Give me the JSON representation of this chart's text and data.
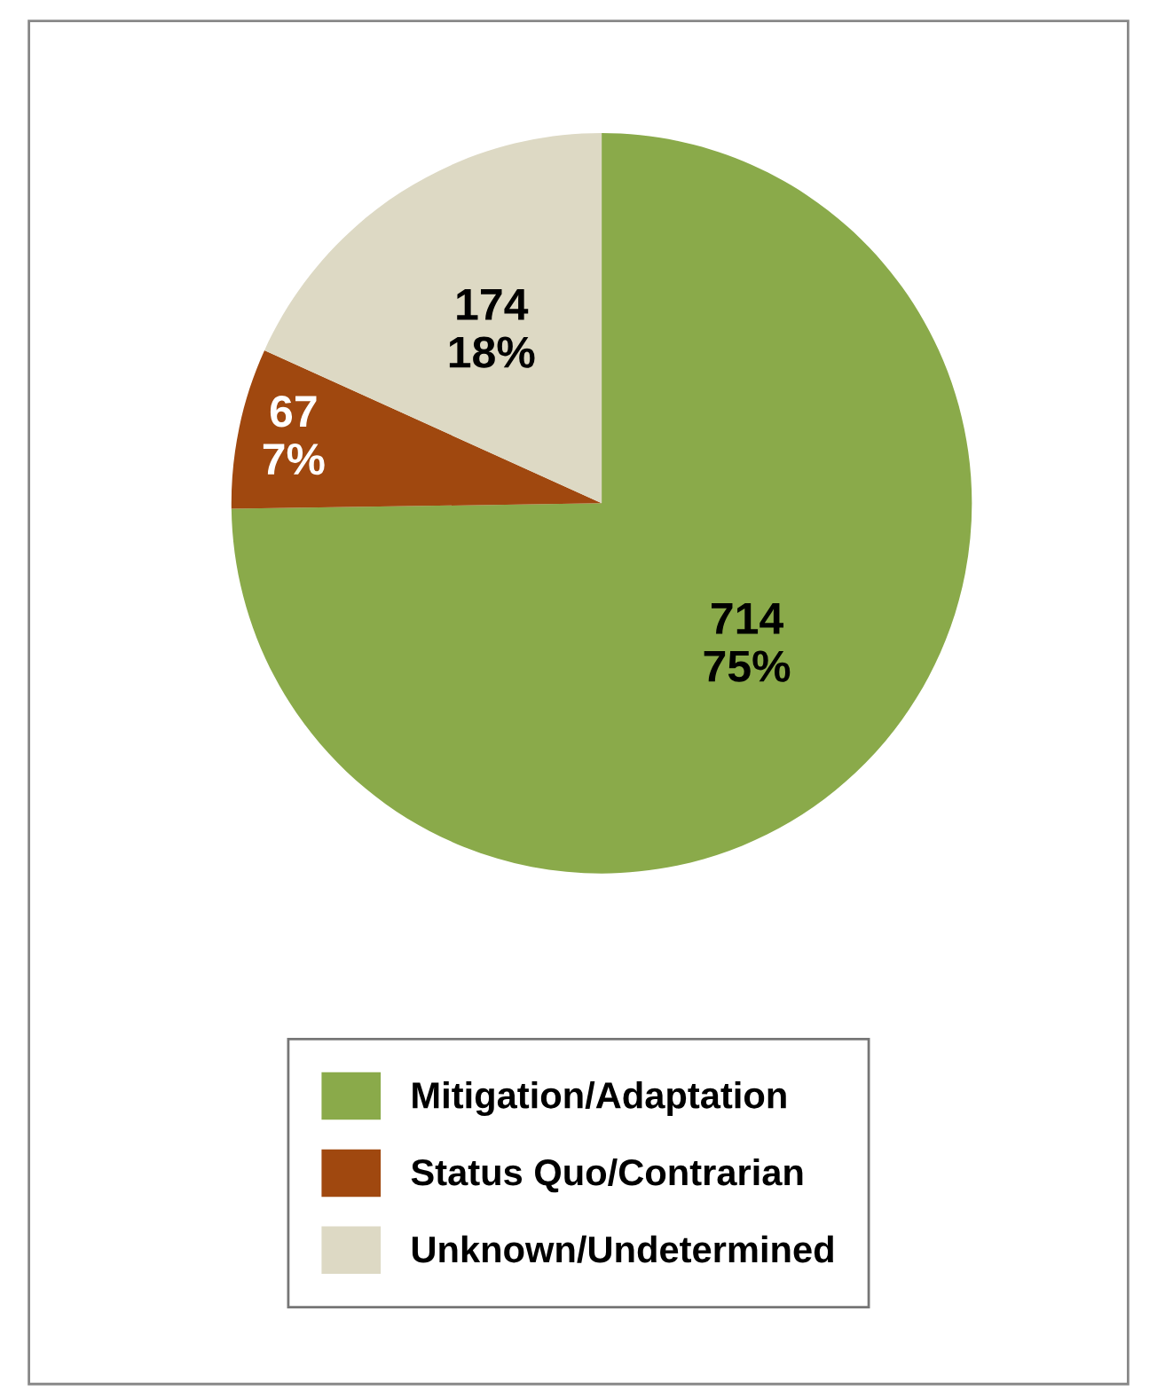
{
  "chart_data": {
    "type": "pie",
    "categories": [
      "Mitigation/Adaptation",
      "Status Quo/Contrarian",
      "Unknown/Undetermined"
    ],
    "values": [
      714,
      67,
      174
    ],
    "value_labels": [
      "714\n75%",
      "67\n7%",
      "174\n18%"
    ],
    "colors": [
      "#8aaa4a",
      "#a0480f",
      "#ddd9c4"
    ],
    "legend": "bottom"
  }
}
